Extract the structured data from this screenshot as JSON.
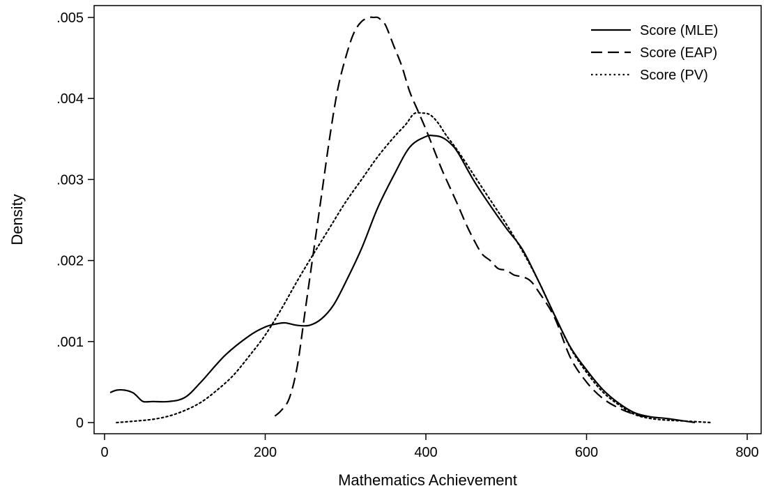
{
  "chart_data": {
    "type": "line",
    "title": "",
    "xlabel": "Mathematics Achievement",
    "ylabel": "Density",
    "xlim": [
      0,
      800
    ],
    "ylim": [
      0,
      0.005
    ],
    "x_ticks": [
      {
        "value": 0,
        "label": "0"
      },
      {
        "value": 200,
        "label": "200"
      },
      {
        "value": 400,
        "label": "400"
      },
      {
        "value": 600,
        "label": "600"
      },
      {
        "value": 800,
        "label": "800"
      }
    ],
    "y_ticks": [
      {
        "value": 0,
        "label": "0"
      },
      {
        "value": 0.001,
        "label": ".001"
      },
      {
        "value": 0.002,
        "label": ".002"
      },
      {
        "value": 0.003,
        "label": ".003"
      },
      {
        "value": 0.004,
        "label": ".004"
      },
      {
        "value": 0.005,
        "label": ".005"
      }
    ],
    "grid": false,
    "legend_position": "top-right",
    "series": [
      {
        "name": "Score (MLE)",
        "style": "solid",
        "x": [
          7,
          15,
          25,
          35,
          40,
          48,
          60,
          80,
          100,
          120,
          150,
          180,
          200,
          215,
          225,
          240,
          255,
          270,
          285,
          300,
          320,
          340,
          360,
          380,
          400,
          410,
          420,
          430,
          440,
          460,
          480,
          500,
          520,
          540,
          560,
          580,
          600,
          620,
          640,
          660,
          680,
          700,
          735
        ],
        "y": [
          0.00037,
          0.0004,
          0.0004,
          0.00037,
          0.00033,
          0.00026,
          0.00026,
          0.00026,
          0.00031,
          0.0005,
          0.00083,
          0.00107,
          0.00118,
          0.00122,
          0.00123,
          0.0012,
          0.0012,
          0.00128,
          0.00145,
          0.00173,
          0.00215,
          0.00265,
          0.00305,
          0.0034,
          0.00353,
          0.00354,
          0.00352,
          0.00345,
          0.00333,
          0.00298,
          0.00268,
          0.0024,
          0.00214,
          0.00175,
          0.00133,
          0.00093,
          0.00065,
          0.00041,
          0.00024,
          0.00012,
          7e-05,
          5e-05,
          0.0
        ]
      },
      {
        "name": "Score (EAP)",
        "style": "dashed",
        "x": [
          212,
          220,
          230,
          240,
          250,
          260,
          270,
          280,
          290,
          300,
          310,
          320,
          330,
          335,
          340,
          345,
          350,
          360,
          370,
          380,
          390,
          400,
          410,
          420,
          430,
          440,
          450,
          460,
          470,
          480,
          490,
          500,
          510,
          520,
          530,
          540,
          560,
          580,
          600,
          620,
          640,
          660,
          675
        ],
        "y": [
          8e-05,
          0.00015,
          0.0003,
          0.0007,
          0.0014,
          0.0021,
          0.0028,
          0.0035,
          0.0041,
          0.0045,
          0.0048,
          0.00495,
          0.005,
          0.005,
          0.005,
          0.00496,
          0.0049,
          0.00465,
          0.0044,
          0.00408,
          0.00385,
          0.00362,
          0.00337,
          0.00312,
          0.0029,
          0.00268,
          0.00245,
          0.00225,
          0.00208,
          0.002,
          0.0019,
          0.00188,
          0.00182,
          0.0018,
          0.00175,
          0.00162,
          0.0013,
          0.0008,
          0.0005,
          0.0003,
          0.00018,
          0.0001,
          7e-05
        ]
      },
      {
        "name": "Score (PV)",
        "style": "dotted",
        "x": [
          15,
          40,
          60,
          80,
          100,
          120,
          140,
          160,
          180,
          200,
          220,
          240,
          260,
          280,
          300,
          320,
          340,
          360,
          375,
          385,
          395,
          405,
          415,
          425,
          440,
          460,
          480,
          500,
          520,
          540,
          560,
          580,
          600,
          620,
          640,
          660,
          680,
          700,
          720,
          755
        ],
        "y": [
          0.0,
          2e-05,
          4e-05,
          8e-05,
          0.00015,
          0.00025,
          0.0004,
          0.00058,
          0.00082,
          0.00108,
          0.0014,
          0.00175,
          0.00208,
          0.0024,
          0.00272,
          0.003,
          0.00328,
          0.00352,
          0.00368,
          0.00381,
          0.00382,
          0.0038,
          0.0037,
          0.00355,
          0.00335,
          0.00305,
          0.00275,
          0.00245,
          0.00212,
          0.00175,
          0.00133,
          0.00092,
          0.00062,
          0.00038,
          0.00022,
          0.0001,
          5e-05,
          3e-05,
          2e-05,
          0.0
        ]
      }
    ]
  }
}
